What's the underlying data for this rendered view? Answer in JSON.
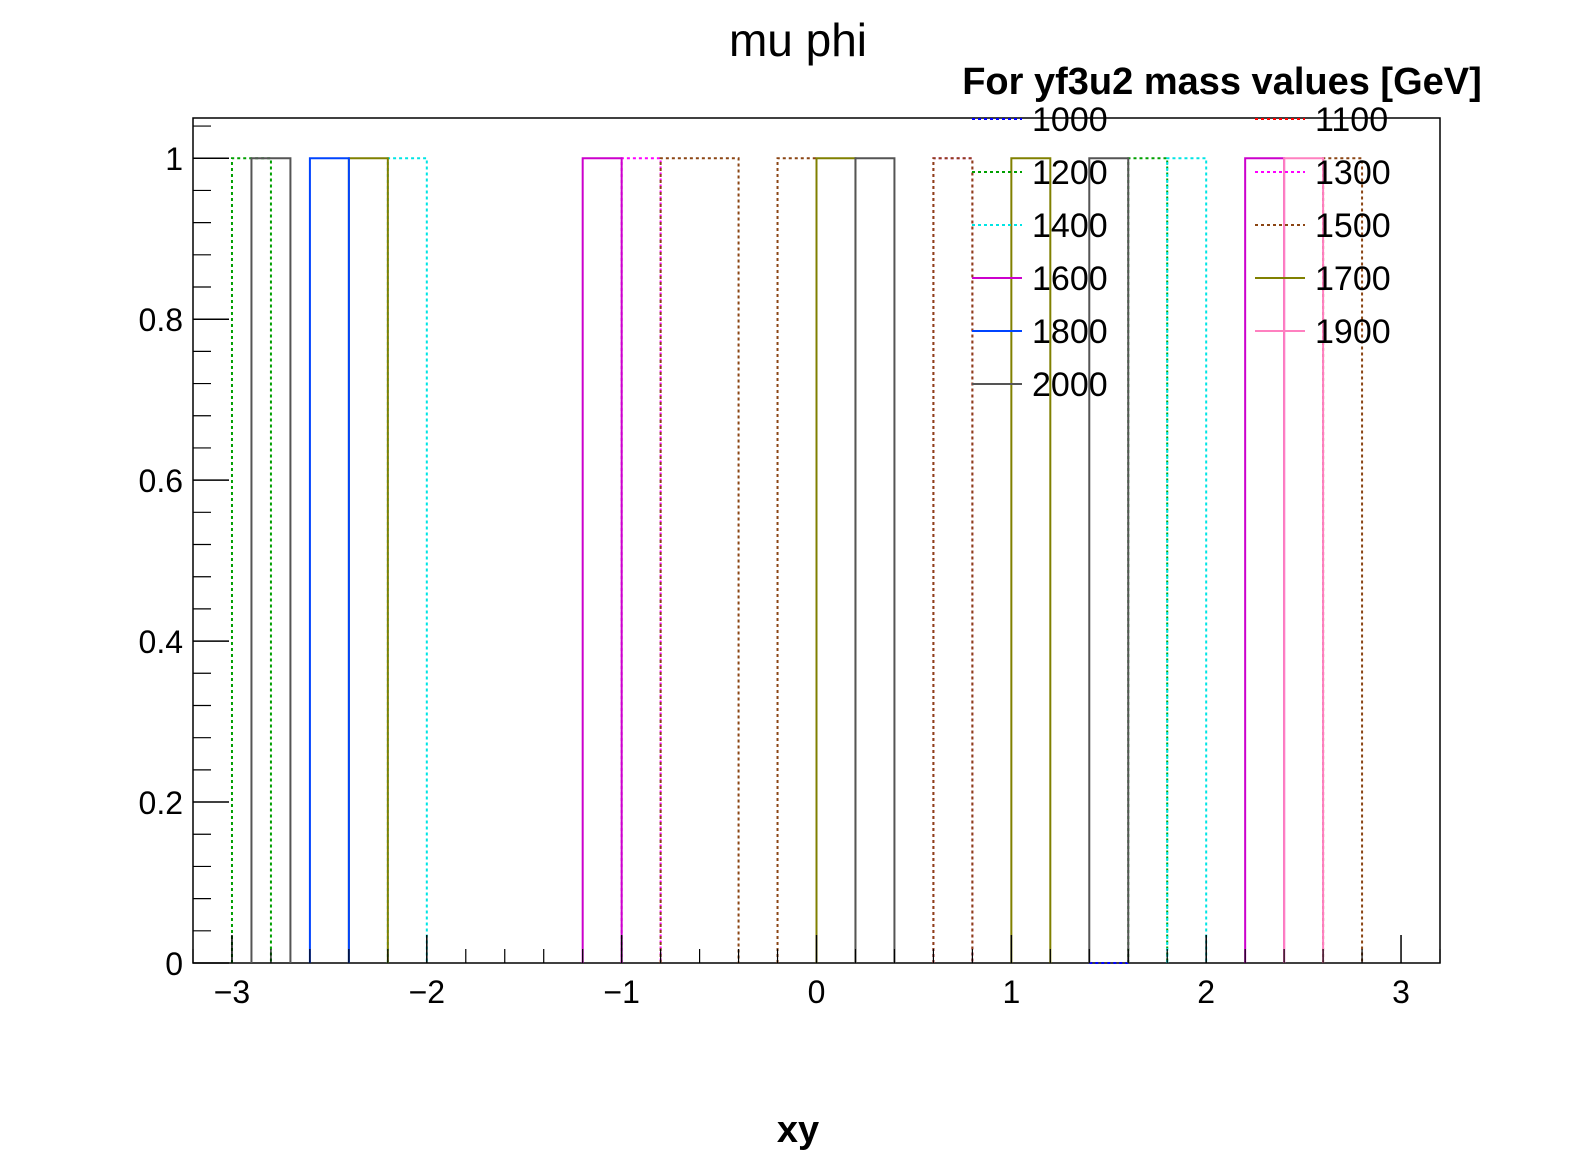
{
  "chart_data": {
    "type": "histogram",
    "title": "mu phi",
    "xlabel": "xy",
    "ylabel": "",
    "xlim": [
      -3.2,
      3.2
    ],
    "ylim": [
      0,
      1.05
    ],
    "bin_width": 0.2,
    "x_ticks": [
      -3,
      -2,
      -1,
      0,
      1,
      2,
      3
    ],
    "x_tick_labels": [
      "−3",
      "−2",
      "−1",
      "0",
      "1",
      "2",
      "3"
    ],
    "y_ticks": [
      0,
      0.2,
      0.4,
      0.6,
      0.8,
      1
    ],
    "y_tick_labels": [
      "0",
      "0.2",
      "0.4",
      "0.6",
      "0.8",
      "1"
    ],
    "legend": {
      "title": "For yf3u2 mass values [GeV]",
      "placement": "top-right",
      "columns": 2
    },
    "series": [
      {
        "name": "1000",
        "color": "#0000ff",
        "dash": "dotted",
        "bins": [
          [
            1.4,
            1.6
          ]
        ],
        "height": 0
      },
      {
        "name": "1100",
        "color": "#ff0000",
        "dash": "dotted",
        "bins": [],
        "height": 0
      },
      {
        "name": "1200",
        "color": "#00a000",
        "dash": "dotted",
        "bins": [
          [
            -3.0,
            -2.8
          ],
          [
            1.6,
            1.8
          ]
        ],
        "height": 1
      },
      {
        "name": "1300",
        "color": "#ff00ff",
        "dash": "dotted",
        "bins": [
          [
            -1.0,
            -0.8
          ],
          [
            0.6,
            0.8
          ]
        ],
        "height": 1
      },
      {
        "name": "1400",
        "color": "#00e5e5",
        "dash": "dotted",
        "bins": [
          [
            -2.2,
            -2.0
          ],
          [
            1.8,
            2.0
          ]
        ],
        "height": 1
      },
      {
        "name": "1500",
        "color": "#8b4513",
        "dash": "dotted",
        "bins": [
          [
            -0.8,
            -0.4
          ],
          [
            -0.2,
            0.0
          ],
          [
            0.6,
            0.8
          ],
          [
            2.6,
            2.8
          ]
        ],
        "height": 1
      },
      {
        "name": "1600",
        "color": "#cc00cc",
        "dash": "solid",
        "bins": [
          [
            -1.2,
            -1.0
          ],
          [
            2.2,
            2.4
          ]
        ],
        "height": 1
      },
      {
        "name": "1700",
        "color": "#808000",
        "dash": "solid",
        "bins": [
          [
            -2.4,
            -2.2
          ],
          [
            0.0,
            0.2
          ],
          [
            1.0,
            1.2
          ]
        ],
        "height": 1
      },
      {
        "name": "1800",
        "color": "#0044ff",
        "dash": "solid",
        "bins": [
          [
            -2.6,
            -2.4
          ]
        ],
        "height": 1
      },
      {
        "name": "1900",
        "color": "#ff80c0",
        "dash": "solid",
        "bins": [
          [
            2.4,
            2.6
          ]
        ],
        "height": 1
      },
      {
        "name": "2000",
        "color": "#555555",
        "dash": "solid",
        "bins": [
          [
            -2.9,
            -2.7
          ],
          [
            0.2,
            0.4
          ],
          [
            1.4,
            1.6
          ]
        ],
        "height": 1
      }
    ]
  }
}
